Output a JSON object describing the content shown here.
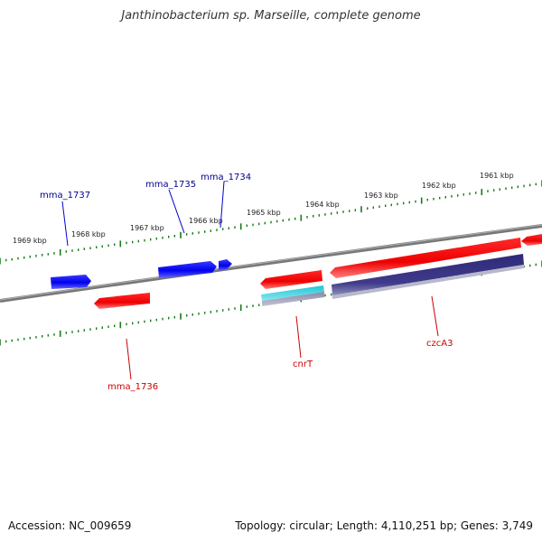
{
  "title": "Janthinobacterium sp. Marseille, complete genome",
  "footer": {
    "accession": "Accession: NC_009659",
    "summary": "Topology: circular; Length: 4,110,251 bp; Genes: 3,749"
  },
  "colors": {
    "backbone": "#888888",
    "tick": "#1a7a1a",
    "forward_gene": "#0000ff",
    "reverse_gene": "#ff0000",
    "label_forward": "#00008b",
    "label_reverse": "#cc0000",
    "cyan_feature": "#22c8d8",
    "purple_feature": "#3a3580"
  },
  "scale": {
    "unit": "kbp",
    "ticks": [
      {
        "label": "1969 kbp",
        "kbp": 1969
      },
      {
        "label": "1968 kbp",
        "kbp": 1968
      },
      {
        "label": "1967 kbp",
        "kbp": 1967
      },
      {
        "label": "1966 kbp",
        "kbp": 1966
      },
      {
        "label": "1965 kbp",
        "kbp": 1965
      },
      {
        "label": "1964 kbp",
        "kbp": 1964
      },
      {
        "label": "1963 kbp",
        "kbp": 1963
      },
      {
        "label": "1962 kbp",
        "kbp": 1962
      },
      {
        "label": "1961 kbp",
        "kbp": 1961
      }
    ]
  },
  "genes": [
    {
      "name": "mma_1737",
      "strand": "forward",
      "labeled": true
    },
    {
      "name": "mma_1735",
      "strand": "forward",
      "labeled": true
    },
    {
      "name": "mma_1734",
      "strand": "forward",
      "labeled": true
    },
    {
      "name": "mma_1736",
      "strand": "reverse",
      "labeled": true
    },
    {
      "name": "cnrT",
      "strand": "reverse",
      "labeled": true
    },
    {
      "name": "czcA3",
      "strand": "reverse",
      "labeled": true
    },
    {
      "name": "",
      "strand": "reverse",
      "labeled": false
    }
  ]
}
